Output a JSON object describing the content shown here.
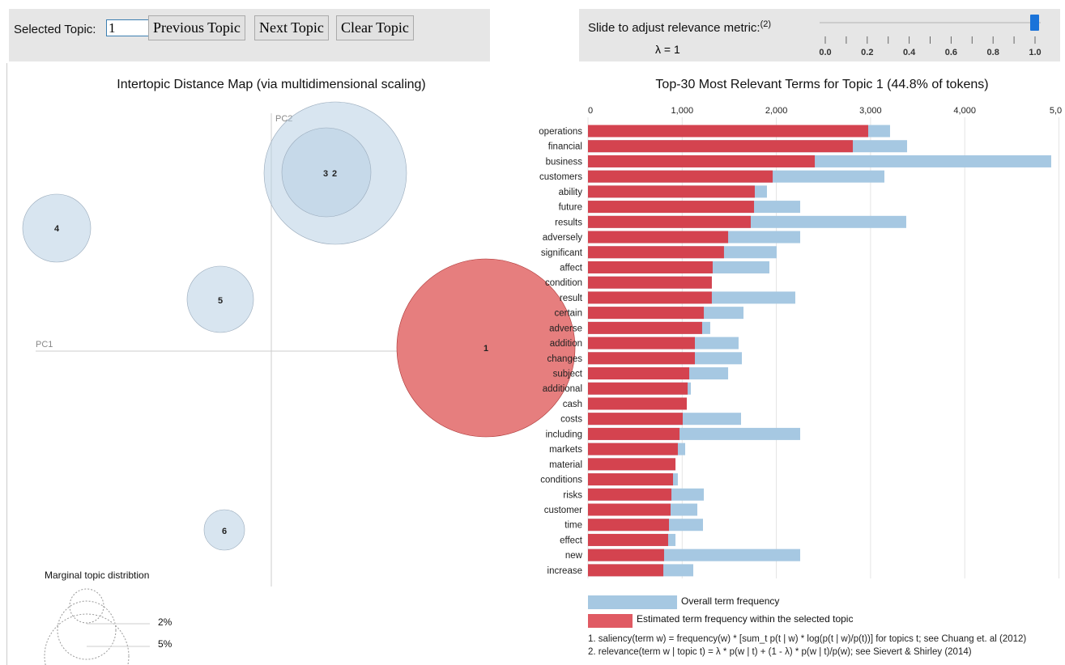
{
  "controls": {
    "selected_topic_label": "Selected Topic:",
    "selected_topic_value": "1",
    "prev": "Previous Topic",
    "next": "Next Topic",
    "clear": "Clear Topic"
  },
  "lambda": {
    "label": "Slide to adjust relevance metric:",
    "footnote": "(2)",
    "value_text": "λ = 1",
    "value": 1,
    "ticks": [
      "0.0",
      "0.2",
      "0.4",
      "0.6",
      "0.8",
      "1.0"
    ]
  },
  "map": {
    "title": "Intertopic Distance Map (via multidimensional scaling)",
    "pc1": "PC1",
    "pc2": "PC2",
    "topics": [
      "1",
      "2",
      "3",
      "4",
      "5",
      "6"
    ],
    "selected_color": "#e67e7e",
    "other_color": "#b8cfe3",
    "legend_title": "Marginal topic distribtion",
    "legend_labels": [
      "2%",
      "5%"
    ]
  },
  "chart_data": {
    "type": "bar",
    "orientation": "horizontal",
    "title": "Top-30 Most Relevant Terms for Topic 1 (44.8% of tokens)",
    "xlim": [
      0,
      5000
    ],
    "x_ticks": [
      "0",
      "1,000",
      "2,000",
      "3,000",
      "4,000",
      "5,0"
    ],
    "grid": true,
    "categories": [
      "operations",
      "financial",
      "business",
      "customers",
      "ability",
      "future",
      "results",
      "adversely",
      "significant",
      "affect",
      "condition",
      "result",
      "certain",
      "adverse",
      "addition",
      "changes",
      "subject",
      "additional",
      "cash",
      "costs",
      "including",
      "markets",
      "material",
      "conditions",
      "risks",
      "customer",
      "time",
      "effect",
      "new",
      "increase"
    ],
    "series": [
      {
        "name": "Overall term frequency",
        "color": "#a6c8e2",
        "values": [
          3207,
          3388,
          4918,
          3147,
          1900,
          2253,
          3379,
          2253,
          2003,
          1926,
          1315,
          2201,
          1651,
          1298,
          1599,
          1634,
          1488,
          1092,
          1049,
          1625,
          2253,
          1032,
          929,
          954,
          1230,
          1161,
          1221,
          929,
          2253,
          1118
        ]
      },
      {
        "name": "Estimated term frequency within the selected topic",
        "color": "#d4434f",
        "values": [
          2975,
          2812,
          2408,
          1961,
          1771,
          1763,
          1728,
          1488,
          1444,
          1324,
          1315,
          1315,
          1230,
          1212,
          1135,
          1135,
          1075,
          1058,
          1049,
          1006,
          972,
          954,
          929,
          903,
          886,
          877,
          860,
          851,
          808,
          800
        ]
      }
    ],
    "legend_placement": "bottom"
  },
  "notes": [
    "1. saliency(term w) = frequency(w) * [sum_t p(t | w) * log(p(t | w)/p(t))] for topics t; see Chuang et. al (2012)",
    "2. relevance(term w | topic t) = λ * p(w | t) + (1 - λ) * p(w | t)/p(w); see Sievert & Shirley (2014)"
  ]
}
